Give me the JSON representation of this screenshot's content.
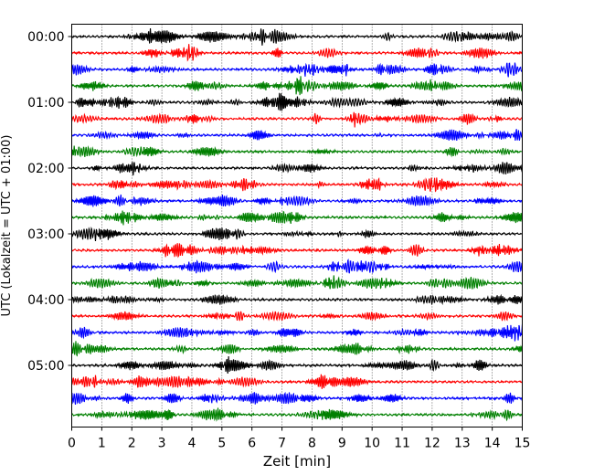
{
  "chart_data": {
    "type": "line",
    "xlabel": "Zeit  [min]",
    "ylabel": "UTC (Lokalzeit = UTC + 01:00)",
    "xlim": [
      0,
      15
    ],
    "x_ticks": [
      0,
      1,
      2,
      3,
      4,
      5,
      6,
      7,
      8,
      9,
      10,
      11,
      12,
      13,
      14,
      15
    ],
    "y_tick_labels": [
      "00:00",
      "01:00",
      "02:00",
      "03:00",
      "04:00",
      "05:00"
    ],
    "trace_interval_min": 15,
    "trace_count": 24,
    "trace_colors": [
      "#000000",
      "#ff0000",
      "#0000ff",
      "#008000"
    ],
    "grid": "vertical-dotted"
  }
}
